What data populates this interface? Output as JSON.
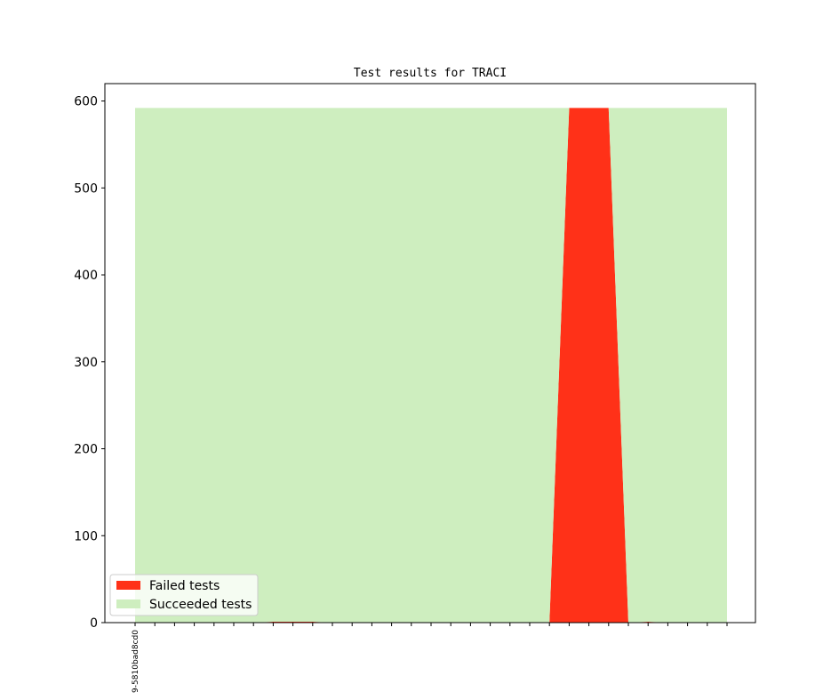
{
  "chart_data": {
    "type": "area",
    "title": "Test results for TRACI",
    "xlabel": "",
    "ylabel": "",
    "ylim": [
      0,
      620
    ],
    "yticks": [
      0,
      100,
      200,
      300,
      400,
      500,
      600
    ],
    "x_tick_labels": [
      "9-5810bad8cd0"
    ],
    "num_points": 31,
    "stacked": true,
    "legend_position": "lower-left",
    "series": [
      {
        "name": "Failed tests",
        "color": "#ff3118",
        "values": [
          0,
          0,
          0,
          0,
          0,
          0,
          0,
          1,
          1,
          1,
          0,
          0,
          0,
          0,
          0,
          0,
          0,
          0,
          0,
          0,
          0,
          0,
          592,
          592,
          592,
          0,
          1,
          0,
          0,
          0,
          0
        ]
      },
      {
        "name": "Succeeded tests",
        "color": "#ceeebf",
        "values": [
          592,
          592,
          592,
          592,
          592,
          592,
          592,
          591,
          591,
          591,
          592,
          592,
          592,
          592,
          592,
          592,
          592,
          592,
          592,
          592,
          592,
          592,
          0,
          0,
          0,
          592,
          591,
          592,
          592,
          592,
          592
        ]
      }
    ]
  }
}
